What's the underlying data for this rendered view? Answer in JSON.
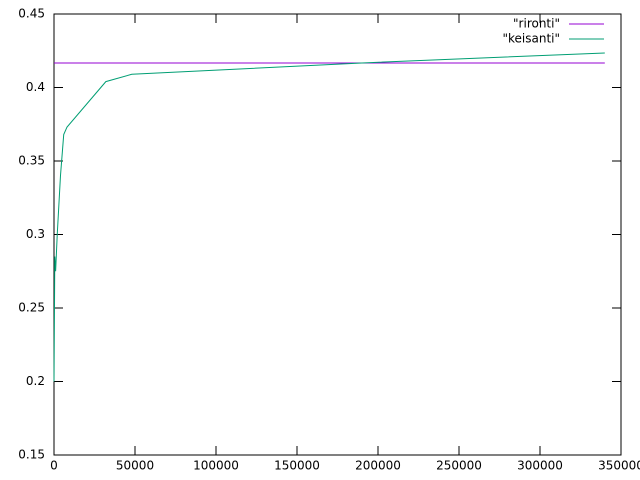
{
  "chart_data": {
    "type": "line",
    "series": [
      {
        "name": "\"rironti\"",
        "color": "#9400d3",
        "x": [
          0,
          340000
        ],
        "values": [
          0.4167,
          0.4167
        ]
      },
      {
        "name": "\"keisanti\"",
        "color": "#009e73",
        "x": [
          0,
          500,
          1000,
          2000,
          4000,
          6000,
          8000,
          32000,
          48000,
          190000,
          340000
        ],
        "values": [
          0.2,
          0.285,
          0.275,
          0.3,
          0.34,
          0.368,
          0.373,
          0.404,
          0.409,
          0.4167,
          0.4235
        ]
      }
    ],
    "xlim": [
      0,
      350000
    ],
    "xticks": [
      0,
      50000,
      100000,
      150000,
      200000,
      250000,
      300000,
      350000
    ],
    "ylim": [
      0.15,
      0.45
    ],
    "yticks": [
      0.15,
      0.2,
      0.25,
      0.3,
      0.35,
      0.4,
      0.45
    ],
    "grid": false,
    "legend": "top right"
  }
}
